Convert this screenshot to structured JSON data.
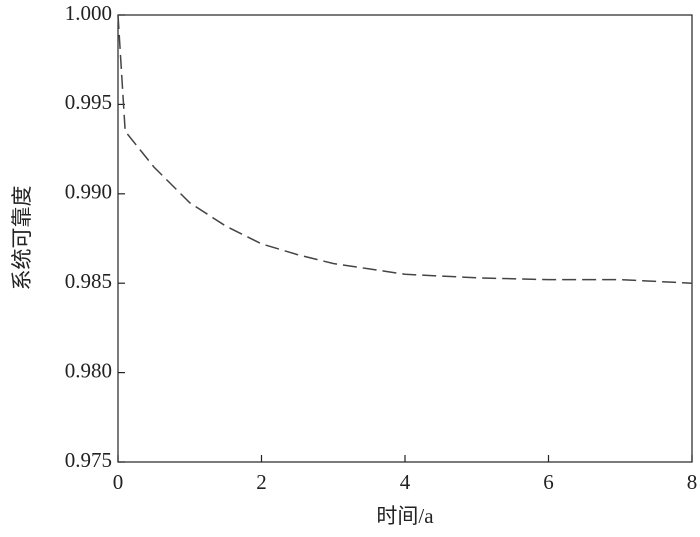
{
  "chart_data": {
    "type": "line",
    "x_label": "时间/a",
    "y_label": "系统可靠度",
    "x": [
      0,
      0.1,
      0.5,
      1,
      1.5,
      2,
      2.5,
      3,
      3.5,
      4,
      5,
      6,
      7,
      8
    ],
    "series": [
      {
        "color": "#444444",
        "dash": true,
        "values": [
          1.0,
          0.9935,
          0.9915,
          0.9895,
          0.9882,
          0.9872,
          0.9866,
          0.9861,
          0.9858,
          0.9855,
          0.9853,
          0.9852,
          0.9852,
          0.985
        ]
      }
    ],
    "xlim": [
      0,
      8
    ],
    "xticks": [
      0,
      2,
      4,
      6,
      8
    ],
    "ylim": [
      0.975,
      1.0
    ],
    "yticks": [
      0.975,
      {
        "value": 0.98,
        "label": "0.980"
      },
      0.985,
      {
        "value": 0.99,
        "label": "0.990"
      },
      0.995,
      {
        "value": 1.0,
        "label": "1.000"
      }
    ],
    "grid": false
  }
}
